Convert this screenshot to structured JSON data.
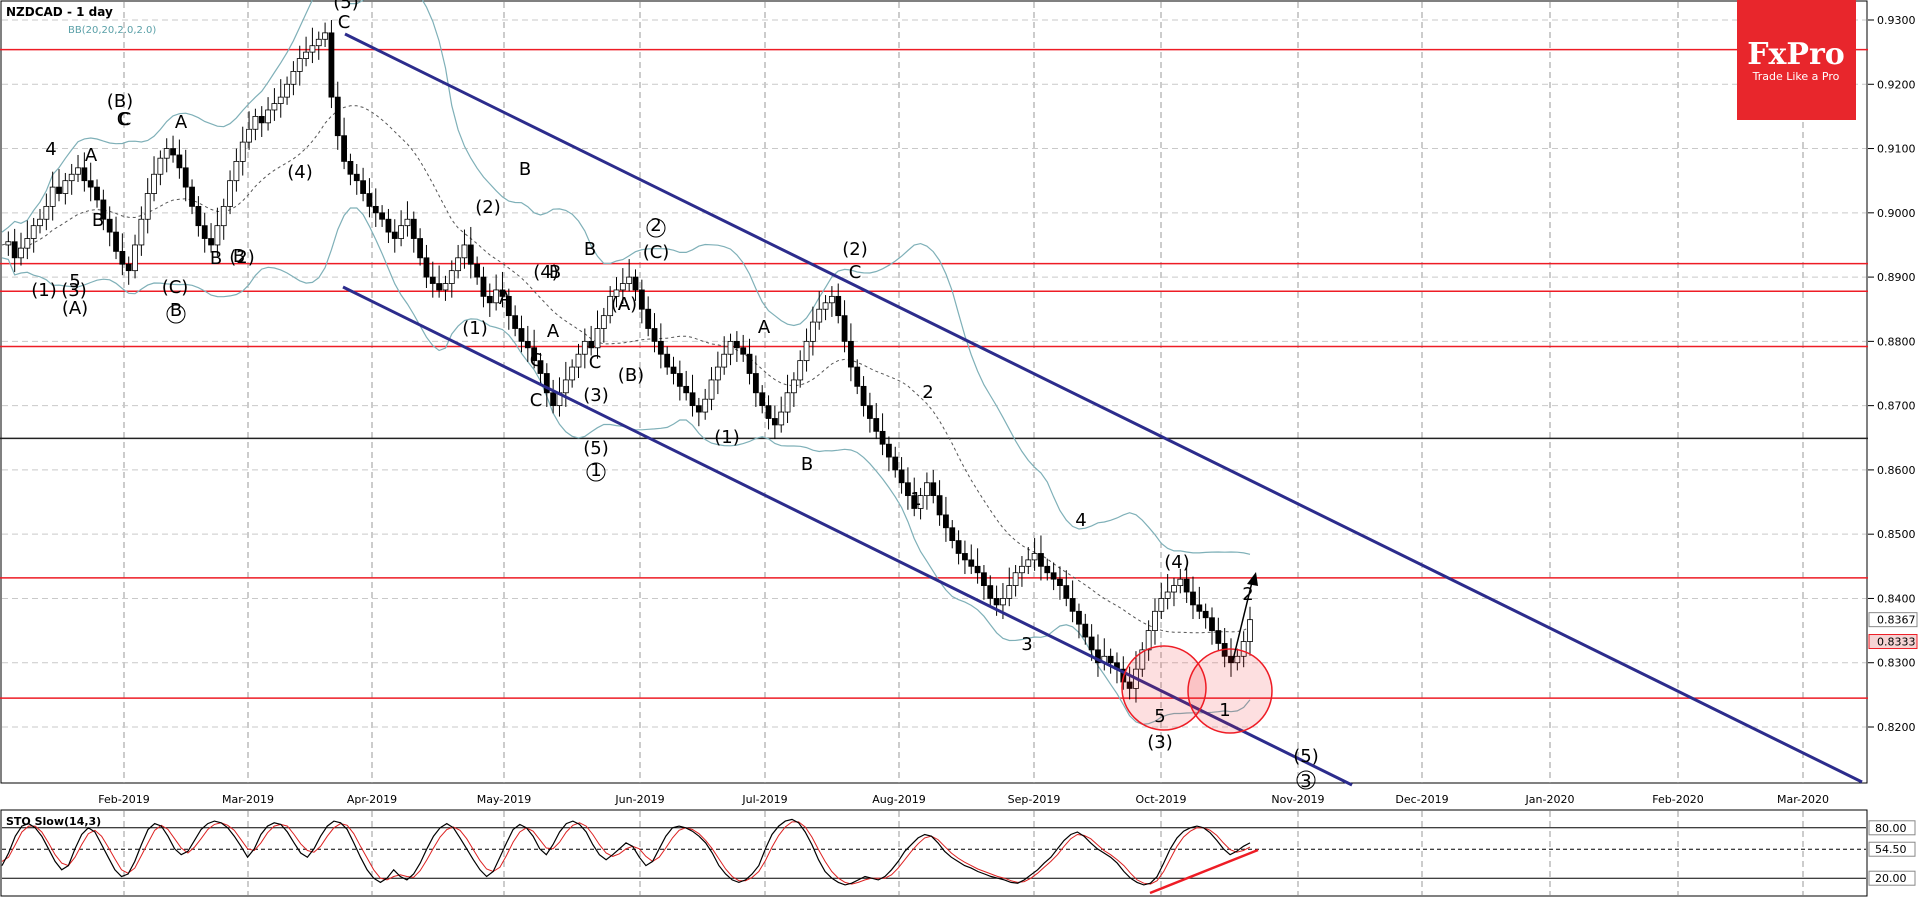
{
  "header": {
    "title": "NZDCAD - 1 day",
    "indicator": "BB(20,20,2.0,2.0)"
  },
  "logo": {
    "name": "FxPro",
    "tagline": "Trade Like a Pro",
    "color": "#e8262c"
  },
  "oscillator": {
    "label": "STO Slow(14,3)",
    "ticks": [
      "80.00",
      "54.50",
      "20.00"
    ]
  },
  "colors": {
    "resistance": "#ee1c25",
    "channel": "#2c2c8c",
    "bands": "#7fb0b8",
    "highlight": "#ee1c25"
  },
  "chart_data": {
    "type": "candlestick",
    "symbol": "NZDCAD",
    "timeframe": "1 day",
    "ylim": [
      0.8125,
      0.9355
    ],
    "price_ticks": [
      "0.9300",
      "0.9200",
      "0.9100",
      "0.9000",
      "0.8900",
      "0.8800",
      "0.8700",
      "0.8600",
      "0.8500",
      "0.8400",
      "0.8300",
      "0.8200"
    ],
    "current_price_labels": [
      "0.8367",
      "0.8333"
    ],
    "x_ticks": [
      "Feb-2019",
      "Mar-2019",
      "Apr-2019",
      "May-2019",
      "Jun-2019",
      "Jul-2019",
      "Aug-2019",
      "Sep-2019",
      "Oct-2019",
      "Nov-2019",
      "Dec-2019",
      "Jan-2020",
      "Feb-2020",
      "Mar-2020"
    ],
    "horizontal_levels": [
      {
        "price": 0.9254,
        "color": "#ee1c25"
      },
      {
        "price": 0.8921,
        "color": "#ee1c25"
      },
      {
        "price": 0.8878,
        "color": "#ee1c25"
      },
      {
        "price": 0.8792,
        "color": "#ee1c25"
      },
      {
        "price": 0.8649,
        "color": "#222222"
      },
      {
        "price": 0.8432,
        "color": "#ee1c25"
      },
      {
        "price": 0.8245,
        "color": "#ee1c25"
      }
    ],
    "closes": [
      0.895,
      0.8955,
      0.893,
      0.8945,
      0.896,
      0.898,
      0.899,
      0.901,
      0.904,
      0.903,
      0.905,
      0.906,
      0.907,
      0.905,
      0.904,
      0.902,
      0.899,
      0.897,
      0.894,
      0.892,
      0.891,
      0.895,
      0.899,
      0.903,
      0.906,
      0.9085,
      0.91,
      0.909,
      0.907,
      0.904,
      0.901,
      0.898,
      0.896,
      0.895,
      0.898,
      0.901,
      0.905,
      0.908,
      0.911,
      0.913,
      0.915,
      0.914,
      0.916,
      0.917,
      0.918,
      0.92,
      0.922,
      0.924,
      0.925,
      0.926,
      0.927,
      0.928,
      0.918,
      0.912,
      0.908,
      0.906,
      0.905,
      0.903,
      0.901,
      0.9,
      0.899,
      0.897,
      0.896,
      0.898,
      0.899,
      0.896,
      0.893,
      0.89,
      0.889,
      0.888,
      0.889,
      0.891,
      0.893,
      0.895,
      0.892,
      0.89,
      0.887,
      0.886,
      0.888,
      0.887,
      0.884,
      0.882,
      0.88,
      0.879,
      0.877,
      0.875,
      0.872,
      0.87,
      0.872,
      0.874,
      0.876,
      0.878,
      0.88,
      0.879,
      0.882,
      0.884,
      0.887,
      0.888,
      0.889,
      0.89,
      0.888,
      0.885,
      0.882,
      0.88,
      0.878,
      0.876,
      0.875,
      0.873,
      0.872,
      0.87,
      0.869,
      0.871,
      0.874,
      0.876,
      0.878,
      0.88,
      0.879,
      0.878,
      0.875,
      0.872,
      0.87,
      0.868,
      0.867,
      0.869,
      0.872,
      0.874,
      0.877,
      0.88,
      0.883,
      0.885,
      0.886,
      0.887,
      0.884,
      0.88,
      0.876,
      0.873,
      0.87,
      0.868,
      0.866,
      0.864,
      0.862,
      0.86,
      0.858,
      0.856,
      0.854,
      0.856,
      0.858,
      0.856,
      0.853,
      0.851,
      0.849,
      0.847,
      0.846,
      0.845,
      0.844,
      0.842,
      0.84,
      0.839,
      0.84,
      0.842,
      0.844,
      0.845,
      0.846,
      0.847,
      0.845,
      0.844,
      0.843,
      0.842,
      0.84,
      0.838,
      0.836,
      0.834,
      0.832,
      0.83,
      0.831,
      0.83,
      0.829,
      0.827,
      0.826,
      0.829,
      0.832,
      0.835,
      0.838,
      0.84,
      0.841,
      0.842,
      0.843,
      0.841,
      0.839,
      0.838,
      0.837,
      0.835,
      0.833,
      0.831,
      0.83,
      0.831,
      0.8333,
      0.8367
    ],
    "elliott_labels": [
      "(5)",
      "C",
      "(3)",
      "(1)",
      "4",
      "A",
      "C",
      "(B)",
      "C",
      "A",
      "B",
      "5",
      "(A)",
      "B",
      "(C)",
      "B",
      "B",
      "(4)",
      "(2)",
      "(2)",
      "B",
      "B",
      "A",
      "(4)",
      "B",
      "C",
      "(1)",
      "A",
      "A",
      "C",
      "(3)",
      "C",
      "(5)",
      "1",
      "(A)",
      "(B)",
      "2",
      "(C)",
      "A",
      "(1)",
      "B",
      "(2)",
      "C",
      "2",
      "1",
      "3",
      "4",
      "(4)",
      "2",
      "5",
      "(3)",
      "1",
      "(5)",
      "3"
    ],
    "stochastic": {
      "k": [
        35,
        50,
        70,
        82,
        85,
        80,
        70,
        55,
        40,
        30,
        35,
        55,
        72,
        80,
        75,
        60,
        45,
        30,
        22,
        25,
        40,
        60,
        78,
        85,
        82,
        70,
        55,
        48,
        52,
        65,
        78,
        85,
        88,
        86,
        80,
        70,
        58,
        45,
        55,
        72,
        82,
        86,
        84,
        75,
        62,
        50,
        45,
        55,
        70,
        82,
        88,
        86,
        78,
        62,
        45,
        30,
        20,
        15,
        20,
        30,
        22,
        18,
        25,
        38,
        55,
        70,
        80,
        85,
        80,
        68,
        55,
        42,
        30,
        22,
        28,
        45,
        62,
        78,
        84,
        80,
        70,
        55,
        48,
        60,
        75,
        85,
        88,
        84,
        75,
        60,
        48,
        42,
        48,
        55,
        62,
        58,
        45,
        35,
        40,
        55,
        70,
        80,
        82,
        80,
        76,
        70,
        62,
        50,
        35,
        25,
        18,
        15,
        18,
        25,
        35,
        55,
        72,
        82,
        88,
        90,
        86,
        75,
        60,
        42,
        28,
        20,
        15,
        12,
        14,
        18,
        22,
        20,
        18,
        22,
        30,
        40,
        52,
        60,
        68,
        72,
        70,
        62,
        52,
        45,
        40,
        35,
        32,
        28,
        25,
        22,
        20,
        18,
        15,
        14,
        18,
        24,
        30,
        38,
        45,
        55,
        65,
        72,
        75,
        70,
        62,
        55,
        50,
        45,
        38,
        28,
        20,
        15,
        12,
        14,
        22,
        38,
        55,
        68,
        76,
        80,
        82,
        80,
        74,
        65,
        55,
        48,
        52,
        58,
        62
      ],
      "d": [
        40,
        45,
        60,
        75,
        82,
        82,
        75,
        62,
        48,
        38,
        35,
        45,
        60,
        73,
        77,
        70,
        57,
        43,
        30,
        26,
        32,
        47,
        62,
        77,
        83,
        78,
        67,
        56,
        50,
        57,
        67,
        78,
        84,
        86,
        83,
        77,
        66,
        55,
        53,
        62,
        74,
        82,
        84,
        82,
        72,
        61,
        53,
        51,
        58,
        70,
        80,
        85,
        83,
        73,
        58,
        44,
        30,
        20,
        18,
        22,
        24,
        22,
        21,
        29,
        42,
        56,
        69,
        78,
        81,
        77,
        67,
        54,
        41,
        31,
        28,
        33,
        47,
        63,
        75,
        80,
        76,
        66,
        56,
        55,
        63,
        75,
        83,
        86,
        82,
        72,
        60,
        50,
        46,
        49,
        55,
        58,
        55,
        46,
        40,
        45,
        56,
        68,
        77,
        80,
        78,
        73,
        65,
        55,
        43,
        31,
        22,
        17,
        17,
        21,
        28,
        41,
        57,
        71,
        81,
        87,
        87,
        81,
        69,
        54,
        40,
        28,
        20,
        15,
        13,
        15,
        18,
        20,
        20,
        20,
        24,
        32,
        42,
        52,
        61,
        68,
        70,
        66,
        58,
        50,
        44,
        39,
        35,
        31,
        28,
        25,
        22,
        20,
        17,
        15,
        16,
        20,
        26,
        33,
        40,
        48,
        58,
        67,
        72,
        71,
        67,
        60,
        53,
        48,
        42,
        35,
        26,
        18,
        14,
        13,
        17,
        28,
        43,
        58,
        69,
        76,
        80,
        80,
        77,
        71,
        62,
        54,
        51,
        53,
        57
      ]
    }
  }
}
